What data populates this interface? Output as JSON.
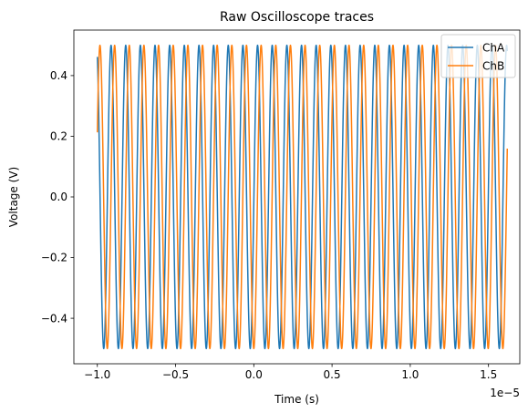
{
  "chart_data": {
    "type": "line",
    "title": "Raw Oscilloscope traces",
    "xlabel": "Time (s)",
    "ylabel": "Voltage (V)",
    "x_offset_label": "1e−5",
    "xlim": [
      -1.15e-05,
      1.7e-05
    ],
    "ylim": [
      -0.55,
      0.55
    ],
    "x_range": [
      -1e-05,
      1.62e-05
    ],
    "x_ticks": [
      -1e-05,
      -5e-06,
      0.0,
      5e-06,
      1e-05,
      1.5e-05
    ],
    "x_tick_labels": [
      "−1.0",
      "−0.5",
      "0.0",
      "0.5",
      "1.0",
      "1.5"
    ],
    "y_ticks": [
      0.4,
      0.2,
      0.0,
      -0.2,
      -0.4
    ],
    "y_tick_labels": [
      "0.4",
      "0.2",
      "0.0",
      "−0.2",
      "−0.4"
    ],
    "grid": false,
    "legend_position": "top-right",
    "series": [
      {
        "name": "ChA",
        "color": "#1f77b4",
        "waveform": "sine",
        "amplitude": 0.5,
        "frequency_hz": 1068000,
        "phase_rad": -0.045,
        "x_start": -1e-05,
        "x_end": 1.62e-05
      },
      {
        "name": "ChB",
        "color": "#ff7f0e",
        "waveform": "sine",
        "amplitude": 0.5,
        "frequency_hz": 1068000,
        "phase_rad": -1.571,
        "x_start": -1e-05,
        "x_end": 1.62e-05
      }
    ]
  }
}
